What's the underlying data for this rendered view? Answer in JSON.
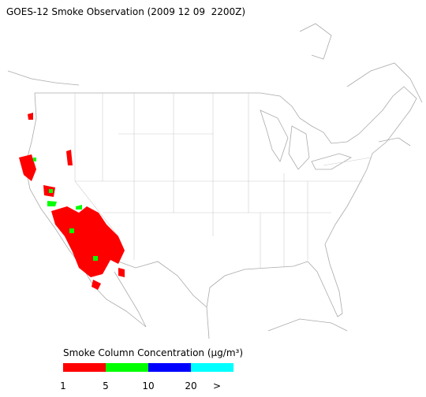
{
  "title": "GOES-12 Smoke Observation (2009 12 09  2200Z)",
  "legend": {
    "title": "Smoke Column Concentration (μg/m³)",
    "bins": [
      {
        "color": "#ff0000"
      },
      {
        "color": "#00ff00"
      },
      {
        "color": "#0000ff"
      },
      {
        "color": "#00ffff"
      }
    ],
    "labels": [
      "1",
      "5",
      "10",
      "20",
      ">"
    ]
  }
}
